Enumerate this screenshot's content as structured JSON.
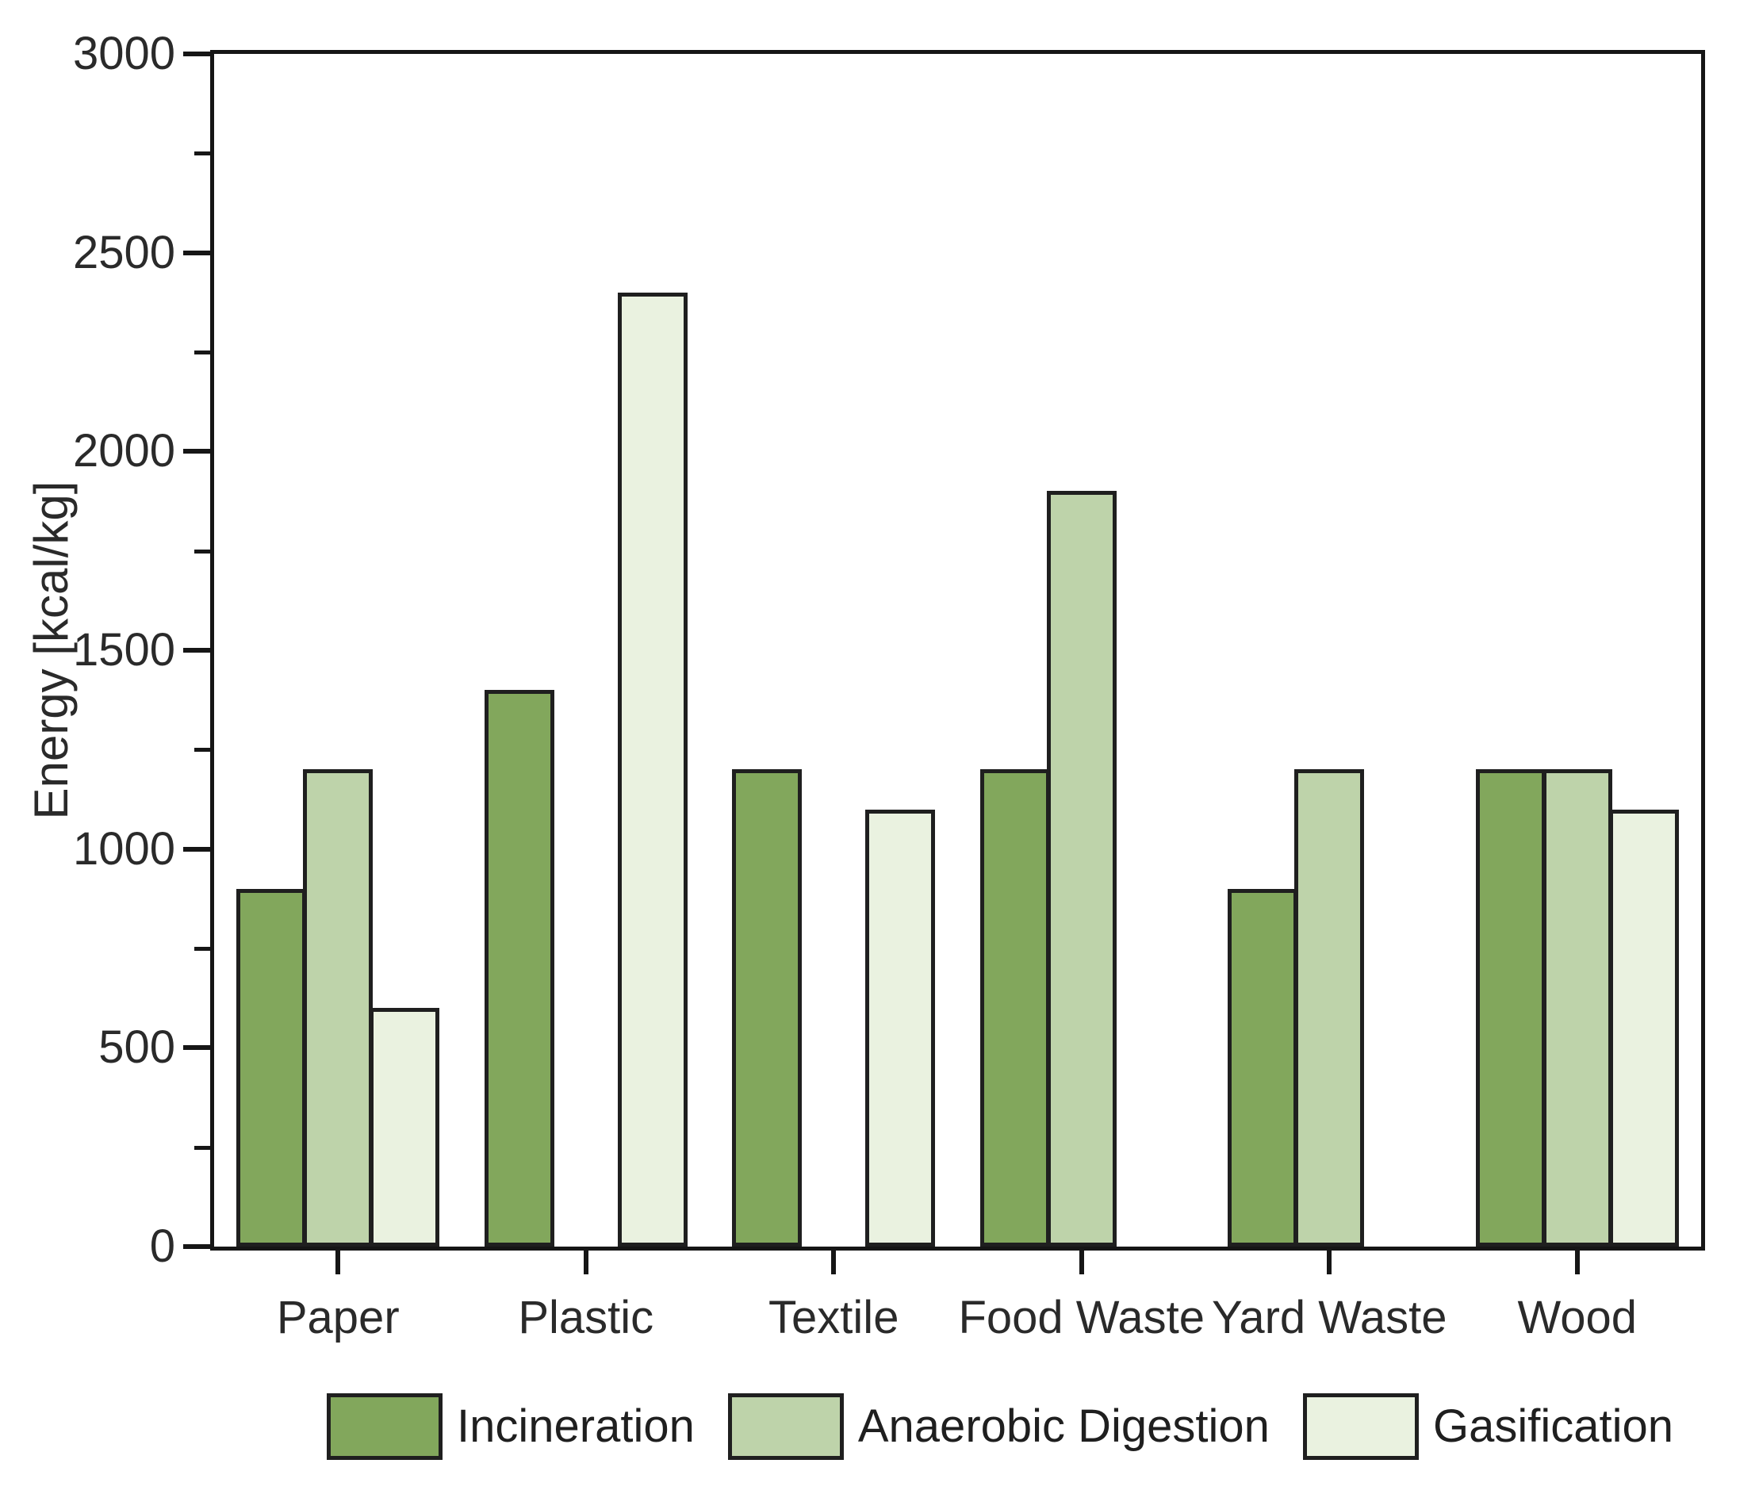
{
  "figure": {
    "background": "#ffffff"
  },
  "chart_data": {
    "type": "bar",
    "title": "",
    "xlabel": "",
    "ylabel": "Energy [kcal/kg]",
    "ylim": [
      0,
      3000
    ],
    "ytick_step": 500,
    "yminor_step": 250,
    "yticks": [
      0,
      500,
      1000,
      1500,
      2000,
      2500,
      3000
    ],
    "grid": false,
    "legend_position": "bottom",
    "categories": [
      "Paper",
      "Plastic",
      "Textile",
      "Food Waste",
      "Yard Waste",
      "Wood"
    ],
    "series": [
      {
        "name": "Incineration",
        "color": "#82a75c",
        "values": [
          900,
          1400,
          1200,
          1200,
          900,
          1200
        ]
      },
      {
        "name": "Anaerobic Digestion",
        "color": "#bed3aa",
        "values": [
          1200,
          null,
          null,
          1900,
          1200,
          1200
        ]
      },
      {
        "name": "Gasification",
        "color": "#eaf2e0",
        "values": [
          600,
          2400,
          1100,
          null,
          null,
          1100
        ]
      }
    ],
    "bar_border_color": "#1f1f1f",
    "axis_color": "#161616"
  }
}
